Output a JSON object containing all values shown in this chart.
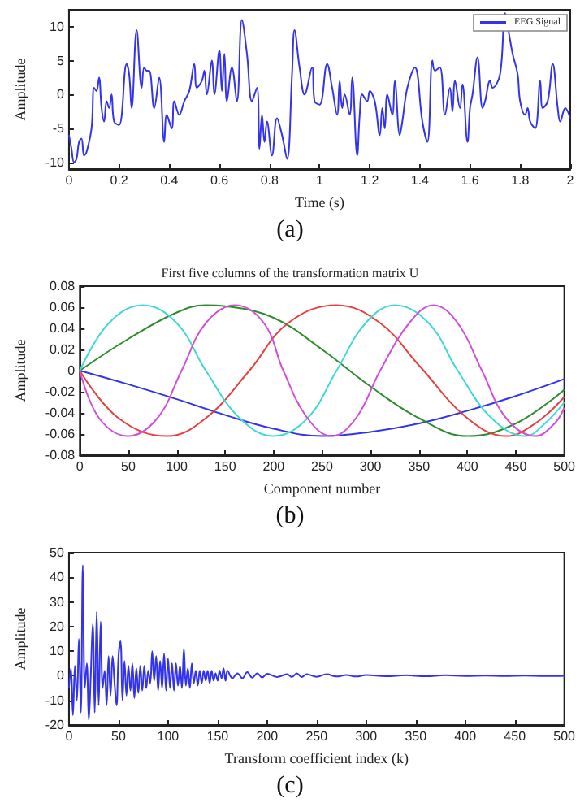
{
  "chart_data": [
    {
      "type": "line",
      "xlabel": "Time (s)",
      "ylabel": "Amplitude",
      "annotations": [
        "(a)"
      ],
      "legend": "top right",
      "grid": false,
      "xlim": [
        0,
        2
      ],
      "xticks": [
        0,
        0.2,
        0.4,
        0.6,
        0.8,
        1,
        1.2,
        1.4,
        1.6,
        1.8,
        2
      ],
      "ylim": [
        -11,
        12.5
      ],
      "yticks": [
        -10,
        -5,
        0,
        5,
        10
      ],
      "series": [
        {
          "name": "EEG Signal",
          "color": "#3333ee",
          "x": [
            0,
            0.01,
            0.02,
            0.03,
            0.04,
            0.05,
            0.06,
            0.07,
            0.09,
            0.1,
            0.11,
            0.12,
            0.13,
            0.14,
            0.15,
            0.16,
            0.17,
            0.18,
            0.2,
            0.23,
            0.24,
            0.25,
            0.27,
            0.29,
            0.3,
            0.31,
            0.32,
            0.34,
            0.36,
            0.38,
            0.39,
            0.41,
            0.42,
            0.44,
            0.46,
            0.48,
            0.5,
            0.51,
            0.53,
            0.54,
            0.55,
            0.57,
            0.58,
            0.6,
            0.61,
            0.62,
            0.63,
            0.65,
            0.67,
            0.69,
            0.71,
            0.73,
            0.75,
            0.76,
            0.77,
            0.78,
            0.79,
            0.81,
            0.83,
            0.85,
            0.87,
            0.89,
            0.9,
            0.92,
            0.94,
            0.97,
            0.98,
            1.0,
            1.03,
            1.05,
            1.07,
            1.08,
            1.09,
            1.1,
            1.12,
            1.13,
            1.15,
            1.16,
            1.17,
            1.19,
            1.2,
            1.22,
            1.24,
            1.25,
            1.26,
            1.27,
            1.29,
            1.3,
            1.32,
            1.33,
            1.35,
            1.38,
            1.41,
            1.43,
            1.45,
            1.46,
            1.48,
            1.5,
            1.52,
            1.53,
            1.54,
            1.56,
            1.57,
            1.59,
            1.6,
            1.61,
            1.63,
            1.65,
            1.66,
            1.68,
            1.69,
            1.72,
            1.74,
            1.76,
            1.77,
            1.79,
            1.8,
            1.82,
            1.83,
            1.84,
            1.86,
            1.88,
            1.89,
            1.91,
            1.93,
            1.95,
            1.96,
            1.98,
            2.0
          ],
          "values": [
            -6,
            -8,
            -10,
            -9.5,
            -7,
            -6.5,
            -9,
            -8.5,
            -5,
            1,
            0.5,
            2.5,
            -2,
            -4,
            -1,
            -2,
            0,
            -4,
            -4.5,
            4.5,
            3,
            -2,
            9.5,
            1,
            4,
            3.5,
            3.5,
            -2,
            2.5,
            -7,
            -3,
            -5,
            -1,
            -3,
            -1,
            0.5,
            4.5,
            1,
            2,
            3.5,
            0,
            5,
            0,
            6.5,
            0.5,
            6,
            -1,
            4,
            -1,
            11,
            6,
            -1,
            1,
            -8,
            -3,
            -7,
            -4,
            -9,
            -3.5,
            -6,
            -9.5,
            3,
            9.5,
            4,
            0,
            4,
            -1,
            -1.5,
            4.5,
            1,
            -3,
            2,
            -2,
            0,
            -3,
            2.5,
            -9,
            -3,
            0,
            -1,
            0.5,
            -1,
            -6,
            -2,
            -5,
            0,
            -3,
            2,
            -6,
            -4,
            1,
            4,
            -4,
            -7,
            5,
            3.5,
            4,
            -3,
            1,
            -2.5,
            2,
            -2,
            1.5,
            -7,
            -2,
            0,
            5.5,
            -2,
            -1,
            2,
            1,
            3,
            12,
            8,
            6,
            3,
            -1,
            -3,
            -2,
            -4,
            -5,
            2,
            -2,
            -1,
            4.5,
            -2,
            -4,
            -2,
            -3.5
          ]
        }
      ]
    },
    {
      "type": "line",
      "title": "First five columns of the transformation matrix U",
      "xlabel": "Component number",
      "ylabel": "Amplitude",
      "annotations": [
        "(b)"
      ],
      "grid": false,
      "xlim": [
        0,
        500
      ],
      "xticks": [
        0,
        50,
        100,
        150,
        200,
        250,
        300,
        350,
        400,
        450,
        500
      ],
      "ylim": [
        -0.08,
        0.08
      ],
      "yticks": [
        -0.08,
        -0.06,
        -0.04,
        -0.02,
        0,
        0.02,
        0.04,
        0.06,
        0.08
      ],
      "series": [
        {
          "color": "#3333ee",
          "x": [
            0,
            50,
            100,
            150,
            200,
            250,
            300,
            350,
            400,
            450,
            500
          ],
          "values": [
            0,
            -0.013,
            -0.027,
            -0.042,
            -0.055,
            -0.062,
            -0.058,
            -0.05,
            -0.038,
            -0.024,
            -0.008
          ]
        },
        {
          "color": "#2e8b2e",
          "x": [
            0,
            50,
            100,
            130,
            150,
            200,
            250,
            300,
            350,
            400,
            450,
            500
          ],
          "values": [
            0,
            0.03,
            0.055,
            0.062,
            0.061,
            0.05,
            0.02,
            -0.015,
            -0.045,
            -0.062,
            -0.05,
            -0.018
          ]
        },
        {
          "color": "#e84040",
          "x": [
            0,
            40,
            90,
            130,
            175,
            215,
            265,
            310,
            350,
            400,
            440,
            470,
            500
          ],
          "values": [
            0,
            -0.045,
            -0.062,
            -0.045,
            0,
            0.045,
            0.062,
            0.045,
            0.005,
            -0.045,
            -0.062,
            -0.05,
            -0.025
          ]
        },
        {
          "color": "#40d8d8",
          "x": [
            0,
            30,
            65,
            100,
            130,
            165,
            200,
            235,
            265,
            295,
            325,
            360,
            390,
            425,
            460,
            480,
            500
          ],
          "values": [
            0,
            0.045,
            0.062,
            0.045,
            0,
            -0.045,
            -0.062,
            -0.045,
            0,
            0.045,
            0.062,
            0.045,
            0,
            -0.045,
            -0.062,
            -0.05,
            -0.03
          ]
        },
        {
          "color": "#d050d8",
          "x": [
            0,
            20,
            50,
            80,
            105,
            130,
            160,
            190,
            210,
            235,
            260,
            285,
            310,
            340,
            365,
            390,
            415,
            440,
            470,
            490,
            500
          ],
          "values": [
            0,
            -0.045,
            -0.062,
            -0.045,
            0,
            0.045,
            0.062,
            0.045,
            0,
            -0.045,
            -0.062,
            -0.045,
            0,
            0.045,
            0.062,
            0.045,
            0,
            -0.045,
            -0.062,
            -0.05,
            -0.035
          ]
        }
      ]
    },
    {
      "type": "line",
      "xlabel": "Transform coefficient index (k)",
      "ylabel": "Amplitude",
      "annotations": [
        "(c)"
      ],
      "grid": false,
      "xlim": [
        0,
        500
      ],
      "xticks": [
        0,
        50,
        100,
        150,
        200,
        250,
        300,
        350,
        400,
        450,
        500
      ],
      "ylim": [
        -20,
        50
      ],
      "yticks": [
        -20,
        -10,
        0,
        10,
        20,
        30,
        40,
        50
      ],
      "series": [
        {
          "color": "#3333ee",
          "x": [
            0,
            2,
            4,
            6,
            8,
            10,
            12,
            14,
            16,
            18,
            20,
            22,
            24,
            26,
            28,
            30,
            32,
            34,
            36,
            38,
            40,
            42,
            44,
            46,
            48,
            50,
            52,
            54,
            56,
            58,
            60,
            62,
            64,
            66,
            68,
            70,
            72,
            74,
            76,
            78,
            80,
            82,
            84,
            86,
            88,
            90,
            92,
            94,
            96,
            98,
            100,
            102,
            104,
            106,
            108,
            110,
            112,
            114,
            116,
            118,
            120,
            122,
            124,
            126,
            128,
            130,
            132,
            134,
            136,
            138,
            140,
            142,
            144,
            146,
            148,
            150,
            152,
            154,
            156,
            158,
            160,
            165,
            170,
            175,
            180,
            185,
            190,
            195,
            200,
            210,
            220,
            225,
            230,
            235,
            240,
            250,
            260,
            270,
            280,
            290,
            300,
            320,
            340,
            360,
            380,
            400,
            420,
            440,
            460,
            480,
            500
          ],
          "values": [
            -5,
            3,
            -16,
            4,
            -10,
            15,
            -15,
            45,
            -5,
            5,
            -18,
            0,
            21,
            -15,
            26,
            -12,
            22,
            -5,
            2,
            -12,
            8,
            -8,
            8,
            -3,
            -12,
            8,
            14,
            -10,
            6,
            -8,
            4,
            -6,
            5,
            -9,
            3,
            -7,
            4,
            -6,
            4,
            -5,
            2,
            -3,
            10,
            -2,
            8,
            -6,
            6,
            -5,
            9,
            -6,
            7,
            -5,
            5,
            -6,
            5,
            -4,
            4,
            -5,
            11,
            -4,
            3,
            -5,
            5,
            -3,
            2,
            -4,
            2,
            -3,
            2,
            -2,
            2,
            -3,
            2,
            -2,
            1,
            -2,
            2,
            -1,
            3,
            -2,
            2,
            -1,
            1,
            -1,
            1.5,
            -0.8,
            1,
            -0.7,
            0.8,
            -0.5,
            0.6,
            -0.5,
            1,
            -0.5,
            0.6,
            -0.4,
            0.6,
            -0.3,
            0.3,
            -0.3,
            0.3,
            -0.2,
            0.2,
            -0.2,
            0.2,
            -0.1,
            0.1,
            -0.1,
            0.1,
            -0.1,
            0
          ]
        }
      ]
    }
  ]
}
